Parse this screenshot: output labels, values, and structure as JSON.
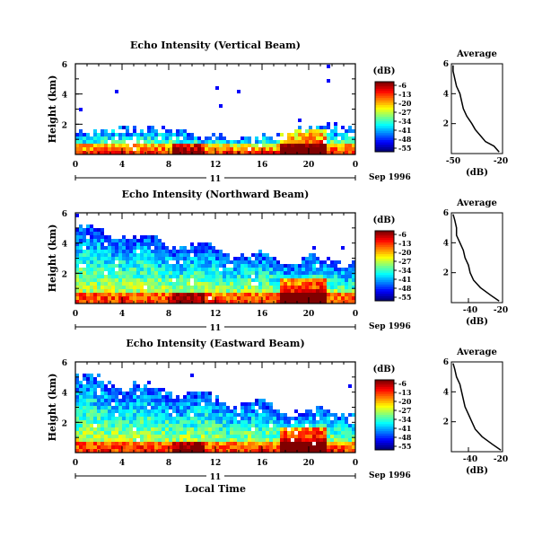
{
  "chart_data": {
    "type": "heatmap",
    "xlabel": "Local Time",
    "date_label": "Sep 1996",
    "day_label": "11",
    "x_ticks": [
      "0",
      "4",
      "8",
      "12",
      "16",
      "20",
      "0"
    ],
    "x_range_hours": [
      0,
      24
    ],
    "ylabel": "Height (km)",
    "y_ticks": [
      "2",
      "4",
      "6"
    ],
    "y_range_km": [
      0,
      6
    ],
    "colorbar": {
      "label": "(dB)",
      "ticks": [
        "-6",
        "-13",
        "-20",
        "-27",
        "-34",
        "-41",
        "-48",
        "-55"
      ]
    },
    "average_profile": {
      "title": "Average",
      "xlabel": "(dB)",
      "y_ticks": [
        "2",
        "4",
        "6"
      ]
    },
    "panels": [
      {
        "title": "Echo Intensity (Vertical Beam)",
        "avg_ticks": [
          "-50",
          "-20"
        ],
        "avg_x_range": [
          -50,
          -20
        ],
        "avg_profile": [
          {
            "h": 0.1,
            "db": -22
          },
          {
            "h": 0.5,
            "db": -25
          },
          {
            "h": 0.8,
            "db": -30
          },
          {
            "h": 1.2,
            "db": -33
          },
          {
            "h": 1.6,
            "db": -36
          },
          {
            "h": 2.0,
            "db": -38
          },
          {
            "h": 2.5,
            "db": -41
          },
          {
            "h": 3.0,
            "db": -43
          },
          {
            "h": 3.5,
            "db": -44
          },
          {
            "h": 4.0,
            "db": -45
          },
          {
            "h": 4.5,
            "db": -47
          },
          {
            "h": 5.0,
            "db": -48
          },
          {
            "h": 5.5,
            "db": -49
          },
          {
            "h": 5.9,
            "db": -49
          }
        ]
      },
      {
        "title": "Echo Intensity (Northward Beam)",
        "avg_ticks": [
          "-40",
          "-20"
        ],
        "avg_x_range": [
          -50,
          -20
        ],
        "avg_profile": [
          {
            "h": 0.1,
            "db": -22
          },
          {
            "h": 0.5,
            "db": -27
          },
          {
            "h": 1.0,
            "db": -33
          },
          {
            "h": 1.5,
            "db": -37
          },
          {
            "h": 2.0,
            "db": -39
          },
          {
            "h": 2.5,
            "db": -40
          },
          {
            "h": 3.0,
            "db": -42
          },
          {
            "h": 3.5,
            "db": -43
          },
          {
            "h": 4.0,
            "db": -45
          },
          {
            "h": 4.5,
            "db": -47
          },
          {
            "h": 5.0,
            "db": -47
          },
          {
            "h": 5.5,
            "db": -48
          },
          {
            "h": 5.9,
            "db": -49
          }
        ]
      },
      {
        "title": "Echo Intensity (Eastward Beam)",
        "avg_ticks": [
          "-40",
          "-20"
        ],
        "avg_x_range": [
          -50,
          -20
        ],
        "avg_profile": [
          {
            "h": 0.1,
            "db": -21
          },
          {
            "h": 0.5,
            "db": -26
          },
          {
            "h": 1.0,
            "db": -32
          },
          {
            "h": 1.5,
            "db": -36
          },
          {
            "h": 2.0,
            "db": -38
          },
          {
            "h": 2.5,
            "db": -40
          },
          {
            "h": 3.0,
            "db": -42
          },
          {
            "h": 3.5,
            "db": -43
          },
          {
            "h": 4.0,
            "db": -44
          },
          {
            "h": 4.5,
            "db": -45
          },
          {
            "h": 5.0,
            "db": -47
          },
          {
            "h": 5.5,
            "db": -48
          },
          {
            "h": 5.9,
            "db": -49
          }
        ]
      }
    ]
  }
}
